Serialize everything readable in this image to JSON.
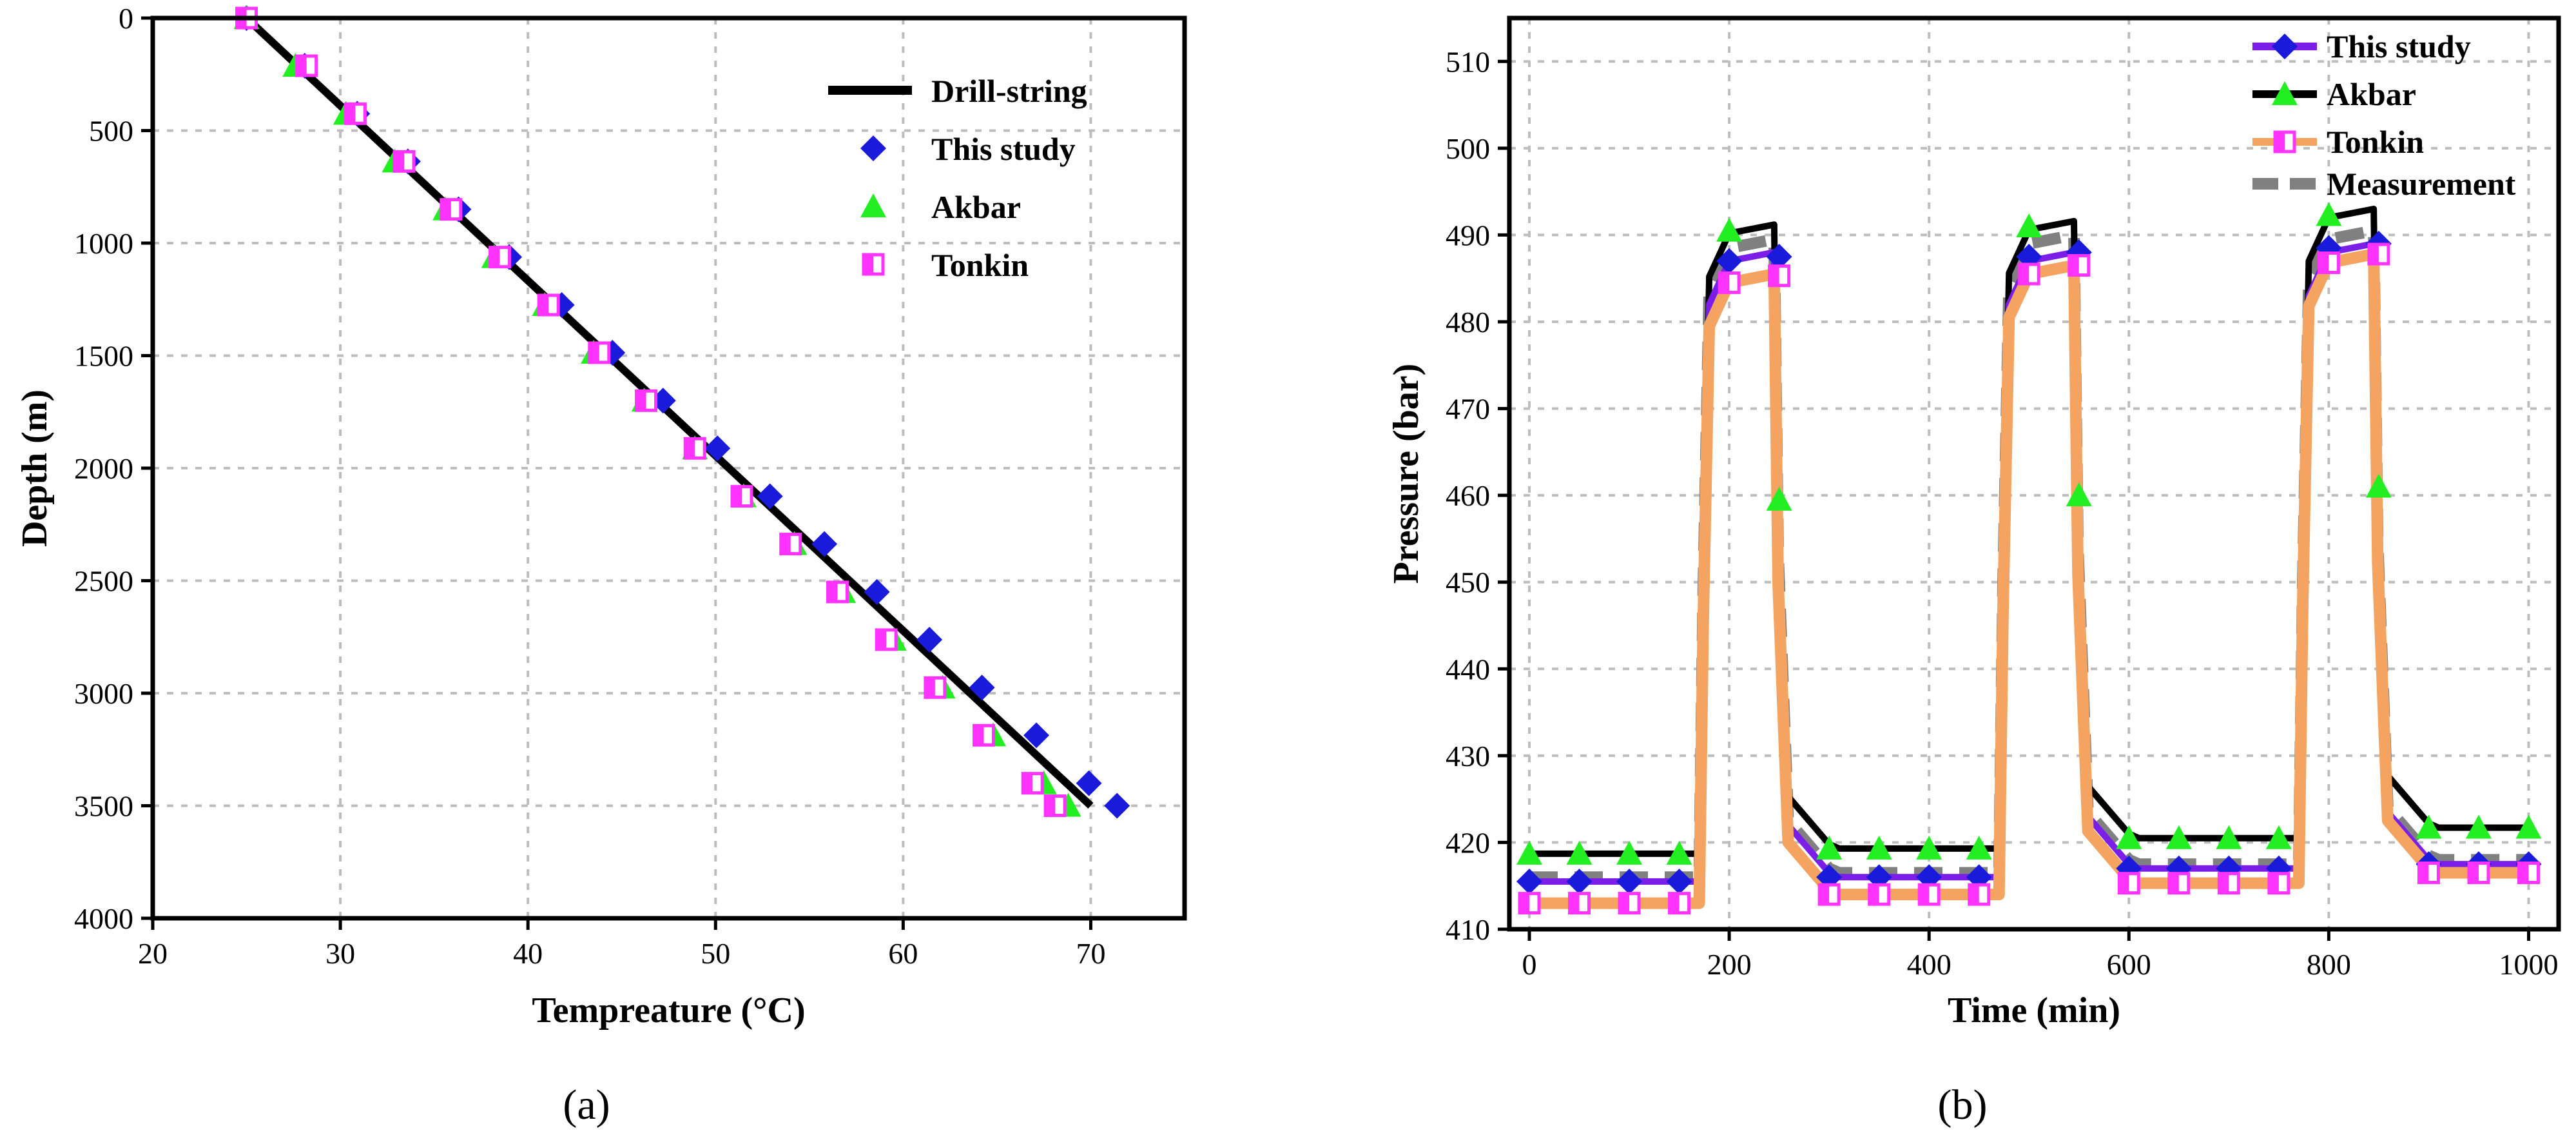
{
  "chart_data": [
    {
      "type": "line",
      "panel_label": "(a)",
      "xlabel": "Tempreature (°C)",
      "ylabel": "Depth (m)",
      "xlim": [
        20,
        75
      ],
      "ylim": [
        0,
        4000
      ],
      "y_inverted": true,
      "xticks": [
        20,
        30,
        40,
        50,
        60,
        70
      ],
      "yticks": [
        0,
        500,
        1000,
        1500,
        2000,
        2500,
        3000,
        3500,
        4000
      ],
      "grid": true,
      "legend_position": "top-right",
      "series": [
        {
          "name": "Drill-string",
          "style": "line",
          "color": "#000000",
          "points": [
            [
              25,
              0
            ],
            [
              70,
              3500
            ]
          ]
        },
        {
          "name": "This study",
          "style": "diamond",
          "color": "#1a1adb",
          "points": [
            [
              25,
              0
            ],
            [
              28.1,
              212
            ],
            [
              30.9,
              425
            ],
            [
              33.6,
              637
            ],
            [
              36.3,
              850
            ],
            [
              39.0,
              1062
            ],
            [
              41.8,
              1275
            ],
            [
              44.5,
              1487
            ],
            [
              47.2,
              1700
            ],
            [
              50.1,
              1912
            ],
            [
              52.9,
              2125
            ],
            [
              55.8,
              2337
            ],
            [
              58.6,
              2550
            ],
            [
              61.4,
              2762
            ],
            [
              64.2,
              2975
            ],
            [
              67.1,
              3187
            ],
            [
              69.9,
              3400
            ],
            [
              71.4,
              3500
            ]
          ]
        },
        {
          "name": "Akbar",
          "style": "triangle",
          "color": "#22ee22",
          "points": [
            [
              25,
              0
            ],
            [
              27.6,
              212
            ],
            [
              30.3,
              425
            ],
            [
              32.9,
              637
            ],
            [
              35.6,
              850
            ],
            [
              38.2,
              1062
            ],
            [
              40.9,
              1275
            ],
            [
              43.5,
              1487
            ],
            [
              46.2,
              1700
            ],
            [
              48.9,
              1912
            ],
            [
              51.5,
              2125
            ],
            [
              54.2,
              2337
            ],
            [
              56.8,
              2550
            ],
            [
              59.5,
              2762
            ],
            [
              62.1,
              2975
            ],
            [
              64.8,
              3187
            ],
            [
              67.5,
              3400
            ],
            [
              68.8,
              3500
            ]
          ]
        },
        {
          "name": "Tonkin",
          "style": "square",
          "color": "#ff33ff",
          "points": [
            [
              25,
              0
            ],
            [
              28.2,
              212
            ],
            [
              30.8,
              425
            ],
            [
              33.4,
              637
            ],
            [
              35.9,
              850
            ],
            [
              38.5,
              1062
            ],
            [
              41.1,
              1275
            ],
            [
              43.8,
              1487
            ],
            [
              46.3,
              1700
            ],
            [
              48.9,
              1912
            ],
            [
              51.4,
              2125
            ],
            [
              54.0,
              2337
            ],
            [
              56.5,
              2550
            ],
            [
              59.1,
              2762
            ],
            [
              61.7,
              2975
            ],
            [
              64.3,
              3187
            ],
            [
              66.9,
              3400
            ],
            [
              68.1,
              3500
            ]
          ]
        }
      ]
    },
    {
      "type": "line",
      "panel_label": "(b)",
      "xlabel": "Time (min)",
      "ylabel": "Pressure (bar)",
      "xlim": [
        -20,
        1030
      ],
      "ylim": [
        410,
        515
      ],
      "xticks": [
        0,
        200,
        400,
        600,
        800,
        1000
      ],
      "yticks": [
        410,
        420,
        430,
        440,
        450,
        460,
        470,
        480,
        490,
        500,
        510
      ],
      "grid": true,
      "legend_position": "top-right",
      "series": [
        {
          "name": "This study",
          "style": "line+diamond",
          "color": "#7a1ee8",
          "marker_color": "#1a1adb",
          "curve": {
            "low1": 415.5,
            "high1": 488.0,
            "low2": 416.0,
            "high2": 488.0,
            "low3": 417.0,
            "high3": 489.0,
            "low4": 417.5
          },
          "markers": [
            [
              0,
              415.5
            ],
            [
              50,
              415.5
            ],
            [
              100,
              415.5
            ],
            [
              150,
              415.5
            ],
            [
              200,
              487.0
            ],
            [
              250,
              487.5
            ],
            [
              300,
              416.0
            ],
            [
              350,
              416.0
            ],
            [
              400,
              416.0
            ],
            [
              450,
              416.0
            ],
            [
              500,
              487.5
            ],
            [
              550,
              488.0
            ],
            [
              600,
              417.0
            ],
            [
              650,
              417.0
            ],
            [
              700,
              417.0
            ],
            [
              750,
              417.0
            ],
            [
              800,
              488.5
            ],
            [
              850,
              489.0
            ],
            [
              900,
              417.5
            ],
            [
              950,
              417.5
            ],
            [
              1000,
              417.5
            ]
          ]
        },
        {
          "name": "Akbar",
          "style": "line+triangle",
          "color": "#000000",
          "marker_color": "#22ee22",
          "curve": {
            "low1": 418.7,
            "high1": 491.2,
            "low2": 419.3,
            "high2": 491.6,
            "low3": 420.5,
            "high3": 493.0,
            "low4": 421.7
          },
          "markers": [
            [
              0,
              418.7
            ],
            [
              50,
              418.7
            ],
            [
              100,
              418.7
            ],
            [
              150,
              418.7
            ],
            [
              200,
              490.5
            ],
            [
              250,
              459.5
            ],
            [
              300,
              419.3
            ],
            [
              350,
              419.3
            ],
            [
              400,
              419.3
            ],
            [
              450,
              419.3
            ],
            [
              500,
              491.0
            ],
            [
              550,
              460.0
            ],
            [
              600,
              420.5
            ],
            [
              650,
              420.5
            ],
            [
              700,
              420.5
            ],
            [
              750,
              420.5
            ],
            [
              800,
              492.3
            ],
            [
              850,
              461.0
            ],
            [
              900,
              421.7
            ],
            [
              950,
              421.7
            ],
            [
              1000,
              421.7
            ]
          ]
        },
        {
          "name": "Tonkin",
          "style": "line+square",
          "color": "#f4a460",
          "marker_color": "#ff33ff",
          "curve": {
            "low1": 413.0,
            "high1": 485.5,
            "low2": 414.0,
            "high2": 486.5,
            "low3": 415.3,
            "high3": 487.8,
            "low4": 416.5
          },
          "markers": [
            [
              0,
              413.0
            ],
            [
              50,
              413.0
            ],
            [
              100,
              413.0
            ],
            [
              150,
              413.0
            ],
            [
              200,
              484.5
            ],
            [
              250,
              485.3
            ],
            [
              300,
              414.0
            ],
            [
              350,
              414.0
            ],
            [
              400,
              414.0
            ],
            [
              450,
              414.0
            ],
            [
              500,
              485.5
            ],
            [
              550,
              486.5
            ],
            [
              600,
              415.3
            ],
            [
              650,
              415.3
            ],
            [
              700,
              415.3
            ],
            [
              750,
              415.3
            ],
            [
              800,
              486.8
            ],
            [
              850,
              487.8
            ],
            [
              900,
              416.5
            ],
            [
              950,
              416.5
            ],
            [
              1000,
              416.5
            ]
          ]
        },
        {
          "name": "Measurement",
          "style": "dashed",
          "color": "#808080",
          "curve": {
            "low1": 416.0,
            "high1": 489.5,
            "low2": 416.5,
            "high2": 490.0,
            "low3": 417.5,
            "high3": 490.5,
            "low4": 418.0
          }
        }
      ]
    }
  ]
}
